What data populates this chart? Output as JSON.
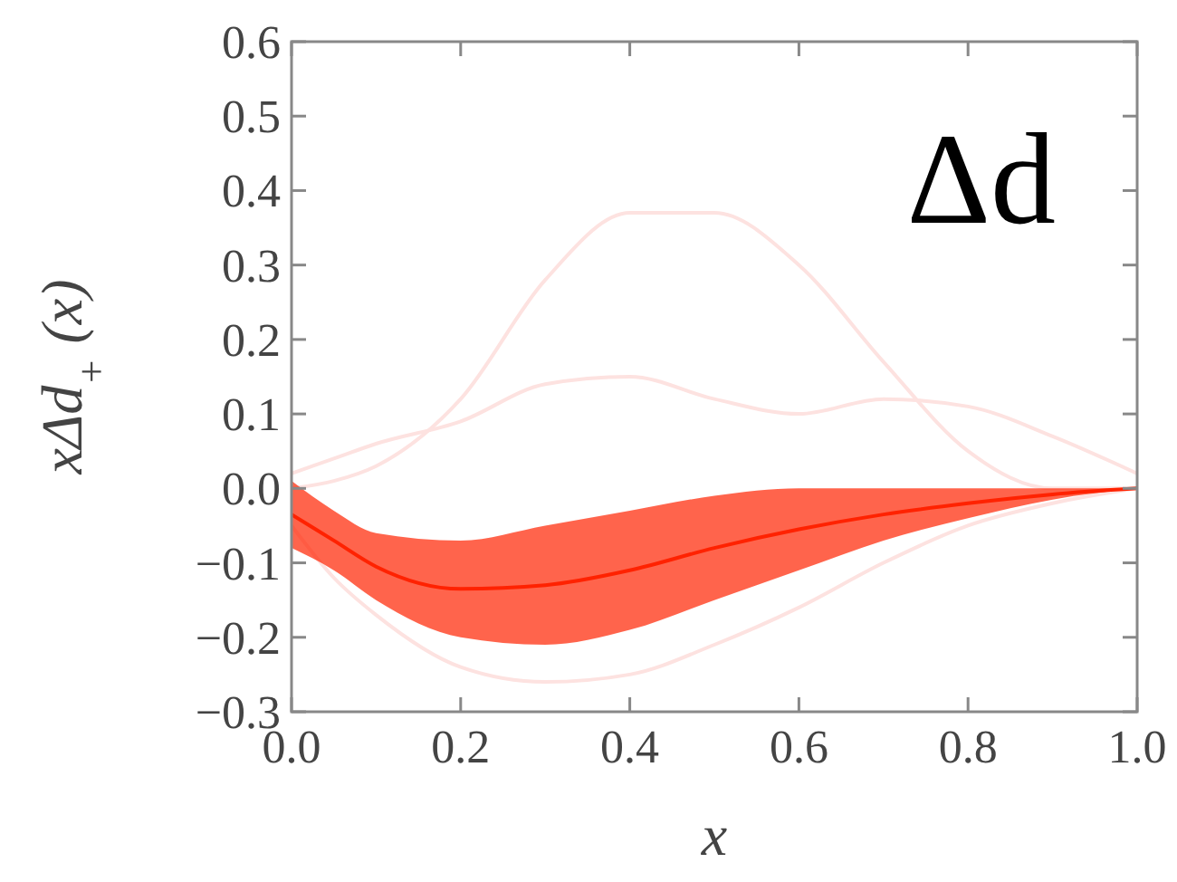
{
  "chart_data": {
    "type": "line",
    "xlabel": "x",
    "ylabel": "xΔd$_{+}$(x)",
    "annotations": [
      "Δd"
    ],
    "xlim": [
      0,
      1
    ],
    "ylim": [
      -0.3,
      0.6
    ],
    "xticks": [
      {
        "value": 0,
        "label": "0.0"
      },
      {
        "value": 0.2,
        "label": "0.2"
      },
      {
        "value": 0.4,
        "label": "0.4"
      },
      {
        "value": 0.6,
        "label": "0.6"
      },
      {
        "value": 0.8,
        "label": "0.8"
      },
      {
        "value": 1,
        "label": "1.0"
      }
    ],
    "yticks": [
      {
        "value": -0.3,
        "label": "−0.3"
      },
      {
        "value": -0.2,
        "label": "−0.2"
      },
      {
        "value": -0.1,
        "label": "−0.1"
      },
      {
        "value": 0,
        "label": "0.0"
      },
      {
        "value": 0.1,
        "label": "0.1"
      },
      {
        "value": 0.2,
        "label": "0.2"
      },
      {
        "value": 0.3,
        "label": "0.3"
      },
      {
        "value": 0.4,
        "label": "0.4"
      },
      {
        "value": 0.5,
        "label": "0.5"
      },
      {
        "value": 0.6,
        "label": "0.6"
      }
    ],
    "grid": false,
    "marker": "none",
    "line_style": "solid",
    "x": [
      0,
      0.05,
      0.1,
      0.2,
      0.3,
      0.4,
      0.5,
      0.6,
      0.7,
      0.8,
      0.9,
      1
    ],
    "series": [
      {
        "color": "#fde2e0",
        "values": [
          0,
          0.01,
          0.03,
          0.12,
          0.28,
          0.37,
          0.37,
          0.3,
          0.17,
          0.05,
          0,
          0
        ]
      },
      {
        "color": "#fde2e0",
        "values": [
          0.02,
          0.04,
          0.06,
          0.09,
          0.14,
          0.15,
          0.12,
          0.1,
          0.12,
          0.11,
          0.07,
          0.02
        ]
      },
      {
        "color": "#fde2e0",
        "values": [
          -0.05,
          -0.12,
          -0.17,
          -0.24,
          -0.26,
          -0.25,
          -0.21,
          -0.16,
          -0.1,
          -0.05,
          -0.02,
          0
        ]
      },
      {
        "color": "#ff2200",
        "values": [
          -0.035,
          -0.07,
          -0.105,
          -0.135,
          -0.13,
          -0.11,
          -0.08,
          -0.055,
          -0.035,
          -0.02,
          -0.008,
          0
        ],
        "lower": [
          -0.08,
          -0.11,
          -0.15,
          -0.2,
          -0.21,
          -0.19,
          -0.15,
          -0.11,
          -0.07,
          -0.04,
          -0.015,
          0
        ],
        "upper": [
          0.01,
          -0.03,
          -0.06,
          -0.07,
          -0.05,
          -0.03,
          -0.01,
          0,
          0,
          0,
          0,
          0
        ]
      }
    ]
  }
}
